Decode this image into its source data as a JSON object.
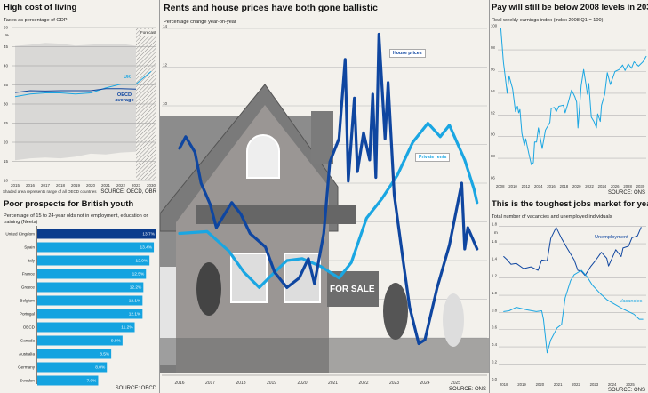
{
  "colors": {
    "dark": "#0f46a0",
    "light": "#1aa6e2",
    "bar": "#14a3e0",
    "bar_highlight": "#0b3c8c",
    "grid": "#b4b4b4",
    "band": "#d9d8d6"
  },
  "panels": {
    "tax": {
      "title": "High cost of living",
      "note": "Shaded area represents range of all OECD countries",
      "source": "SOURCE: OECD, OBR",
      "chart_data": {
        "type": "line",
        "ylabel": "Taxes as percentage of GDP",
        "y_unit": "%",
        "ylim": [
          10,
          50
        ],
        "yticks": [
          10,
          15,
          20,
          25,
          30,
          35,
          40,
          45,
          50
        ],
        "categories": [
          "2015",
          "2016",
          "2017",
          "2018",
          "2019",
          "2020",
          "2021",
          "2022",
          "2023",
          "2030"
        ],
        "forecast_label": "Forecast",
        "forecast_from": "2023",
        "series": [
          {
            "name": "UK",
            "color": "light",
            "values": [
              31.9,
              32.6,
              32.9,
              32.9,
              32.6,
              32.9,
              34.2,
              35.2,
              35.2,
              38.5
            ]
          },
          {
            "name": "OECD average",
            "color": "dark",
            "values": [
              33.0,
              33.5,
              33.4,
              33.5,
              33.5,
              33.5,
              34.0,
              34.0,
              33.9,
              null
            ]
          }
        ],
        "range_band": {
          "upper": [
            45.2,
            45.5,
            46.0,
            45.8,
            45.3,
            45.5,
            45.8,
            45.8,
            45.2
          ],
          "lower": [
            15.3,
            15.8,
            16.0,
            15.8,
            16.2,
            17.0,
            16.8,
            17.3,
            17.5
          ]
        }
      }
    },
    "neet": {
      "title": "Poor prospects for British youth",
      "source": "SOURCE: OECD",
      "chart_data": {
        "type": "bar",
        "orientation": "horizontal",
        "ylabel": "Percentage of 15 to 24-year olds not in employment, education or training (Neets)",
        "categories": [
          "United Kingdom",
          "Spain",
          "Italy",
          "France",
          "Greece",
          "Belgium",
          "Portugal",
          "OECD",
          "Canada",
          "Australia",
          "Germany",
          "Sweden"
        ],
        "values": [
          13.7,
          13.4,
          12.9,
          12.5,
          12.2,
          12.1,
          12.1,
          11.2,
          9.8,
          8.5,
          8.0,
          7.0
        ],
        "labels": [
          "13.7%",
          "13.4%",
          "12.9%",
          "12.5%",
          "12.2%",
          "12.1%",
          "12.1%",
          "11.2%",
          "9.8%",
          "8.5%",
          "8.0%",
          "7.0%"
        ],
        "highlight": "United Kingdom"
      }
    },
    "housing": {
      "title": "Rents and house prices have both gone ballistic",
      "source": "SOURCE: ONS",
      "photo_sign": "FOR SALE",
      "chart_data": {
        "type": "line",
        "ylabel": "Percentage change year-on-year",
        "ylim": [
          -2,
          14
        ],
        "yticks": [
          -2,
          0,
          2,
          4,
          6,
          8,
          10,
          12,
          14
        ],
        "xticks": [
          "2016",
          "2017",
          "2018",
          "2019",
          "2020",
          "2021",
          "2022",
          "2023",
          "2024",
          "2025"
        ],
        "series": [
          {
            "name": "House prices",
            "color": "dark",
            "x": [
              2016.0,
              2016.2,
              2016.5,
              2016.7,
              2017.0,
              2017.2,
              2017.7,
              2018.0,
              2018.3,
              2018.8,
              2019.1,
              2019.5,
              2019.9,
              2020.2,
              2020.4,
              2020.7,
              2020.9,
              2021.2,
              2021.4,
              2021.5,
              2021.7,
              2021.8,
              2022.0,
              2022.2,
              2022.3,
              2022.4,
              2022.5,
              2022.7,
              2022.8,
              2023.0,
              2023.3,
              2023.5,
              2023.8,
              2024.0,
              2024.4,
              2024.8,
              2025.2,
              2025.3,
              2025.4,
              2025.7
            ],
            "y": [
              7.8,
              8.4,
              7.6,
              6.0,
              4.9,
              3.7,
              5.0,
              4.4,
              3.4,
              2.7,
              1.4,
              0.6,
              1.1,
              2.1,
              0.8,
              3.4,
              7.1,
              8.3,
              12.4,
              6.1,
              10.4,
              6.6,
              8.6,
              7.2,
              10.6,
              6.3,
              13.7,
              8.3,
              11.2,
              5.4,
              1.9,
              -0.4,
              -2.3,
              -2.1,
              0.6,
              2.8,
              6.0,
              2.6,
              3.7,
              2.6
            ]
          },
          {
            "name": "Private rents",
            "color": "light",
            "x": [
              2016.0,
              2016.9,
              2017.6,
              2018.1,
              2018.6,
              2019.1,
              2019.5,
              2020.0,
              2020.6,
              2020.7,
              2021.2,
              2021.6,
              2022.1,
              2022.6,
              2023.1,
              2023.6,
              2024.1,
              2024.5,
              2024.8,
              2025.3,
              2025.6,
              2025.7
            ],
            "y": [
              3.4,
              3.5,
              2.5,
              1.4,
              0.6,
              1.4,
              2.0,
              2.1,
              1.7,
              1.6,
              1.1,
              1.9,
              4.2,
              5.2,
              6.4,
              8.1,
              9.1,
              8.4,
              9.0,
              7.2,
              5.7,
              5.0
            ]
          }
        ]
      }
    },
    "pay": {
      "title": "Pay will still be below 2008 levels in 2030",
      "source": "SOURCE: ONS",
      "chart_data": {
        "type": "line",
        "ylabel": "Real weekly earnings index (index 2008 Q1 = 100)",
        "ylim": [
          86,
          100
        ],
        "yticks": [
          86,
          88,
          90,
          92,
          94,
          96,
          98,
          100
        ],
        "xticks": [
          "2008",
          "2010",
          "2012",
          "2014",
          "2016",
          "2018",
          "2020",
          "2022",
          "2024",
          "2026",
          "2028",
          "2030"
        ],
        "series": [
          {
            "color": "light",
            "x": [
              2008.1,
              2008.5,
              2008.8,
              2009.1,
              2009.4,
              2009.95,
              2010.4,
              2010.7,
              2010.9,
              2011.1,
              2011.4,
              2011.8,
              2012.0,
              2012.5,
              2012.9,
              2013.2,
              2013.4,
              2013.7,
              2014.0,
              2014.6,
              2015.1,
              2015.8,
              2016.0,
              2016.5,
              2016.8,
              2017.2,
              2017.9,
              2018.2,
              2018.7,
              2019.2,
              2019.7,
              2020.0,
              2020.2,
              2020.7,
              2021.1,
              2021.7,
              2021.9,
              2022.3,
              2022.7,
              2023.1,
              2023.3,
              2023.7,
              2023.9,
              2024.4,
              2024.8,
              2025.3,
              2026.0,
              2026.7,
              2027.2,
              2027.6,
              2028.1,
              2028.6,
              2029.0,
              2029.7,
              2030.4,
              2030.9
            ],
            "y": [
              100,
              96.9,
              95.5,
              94.0,
              95.6,
              94.4,
              92.3,
              92.8,
              92.2,
              92.5,
              90.3,
              89.2,
              89.8,
              88.4,
              87.4,
              87.6,
              89.5,
              89.5,
              90.8,
              88.9,
              90.6,
              91.3,
              92.6,
              92.7,
              92.3,
              92.8,
              92.9,
              92.2,
              93.2,
              94.3,
              93.7,
              93.2,
              90.8,
              94.7,
              96.2,
              93.9,
              94.9,
              91.8,
              91.4,
              90.8,
              92.1,
              91.4,
              92.9,
              93.9,
              95.9,
              94.8,
              96.0,
              96.2,
              96.6,
              96.1,
              96.7,
              96.3,
              96.9,
              96.5,
              96.9,
              97.4
            ]
          }
        ]
      }
    },
    "jobs": {
      "title": "This is the toughest jobs market for years",
      "source": "SOURCE: ONS",
      "chart_data": {
        "type": "line",
        "ylabel": "Total number of vacancies and unemployed individuals",
        "y_unit": "m",
        "ylim": [
          0,
          1.8
        ],
        "yticks": [
          "0.0",
          "0.2",
          "0.4",
          "0.6",
          "0.8",
          "1.0",
          "1.2",
          "1.4",
          "1.6",
          "1.8"
        ],
        "xticks": [
          "2018",
          "2019",
          "2020",
          "2021",
          "2022",
          "2023",
          "2024",
          "2025"
        ],
        "series": [
          {
            "name": "Unemployment",
            "color": "dark",
            "x": [
              2018.0,
              2018.2,
              2018.4,
              2018.7,
              2019.1,
              2019.5,
              2019.9,
              2020.1,
              2020.4,
              2020.6,
              2020.9,
              2021.2,
              2021.5,
              2021.9,
              2022.1,
              2022.3,
              2022.5,
              2022.8,
              2023.1,
              2023.4,
              2023.7,
              2023.8,
              2024.1,
              2024.2,
              2024.5,
              2024.6,
              2024.9,
              2025.1,
              2025.4,
              2025.6
            ],
            "y": [
              1.45,
              1.41,
              1.36,
              1.37,
              1.31,
              1.33,
              1.29,
              1.41,
              1.4,
              1.66,
              1.79,
              1.66,
              1.55,
              1.41,
              1.29,
              1.28,
              1.23,
              1.33,
              1.41,
              1.5,
              1.43,
              1.34,
              1.48,
              1.53,
              1.45,
              1.55,
              1.57,
              1.67,
              1.69,
              1.79
            ]
          },
          {
            "name": "Vacancies",
            "color": "light",
            "x": [
              2018.0,
              2018.3,
              2018.7,
              2019.3,
              2019.8,
              2020.1,
              2020.2,
              2020.4,
              2020.6,
              2020.95,
              2021.2,
              2021.4,
              2021.7,
              2021.9,
              2022.3,
              2022.6,
              2022.9,
              2023.3,
              2023.7,
              2024.1,
              2024.6,
              2024.9,
              2025.2,
              2025.5,
              2025.7
            ],
            "y": [
              0.81,
              0.82,
              0.86,
              0.83,
              0.81,
              0.82,
              0.72,
              0.33,
              0.48,
              0.62,
              0.66,
              0.97,
              1.17,
              1.24,
              1.29,
              1.22,
              1.12,
              1.03,
              0.95,
              0.9,
              0.84,
              0.81,
              0.78,
              0.72,
              0.72
            ]
          }
        ]
      }
    }
  }
}
